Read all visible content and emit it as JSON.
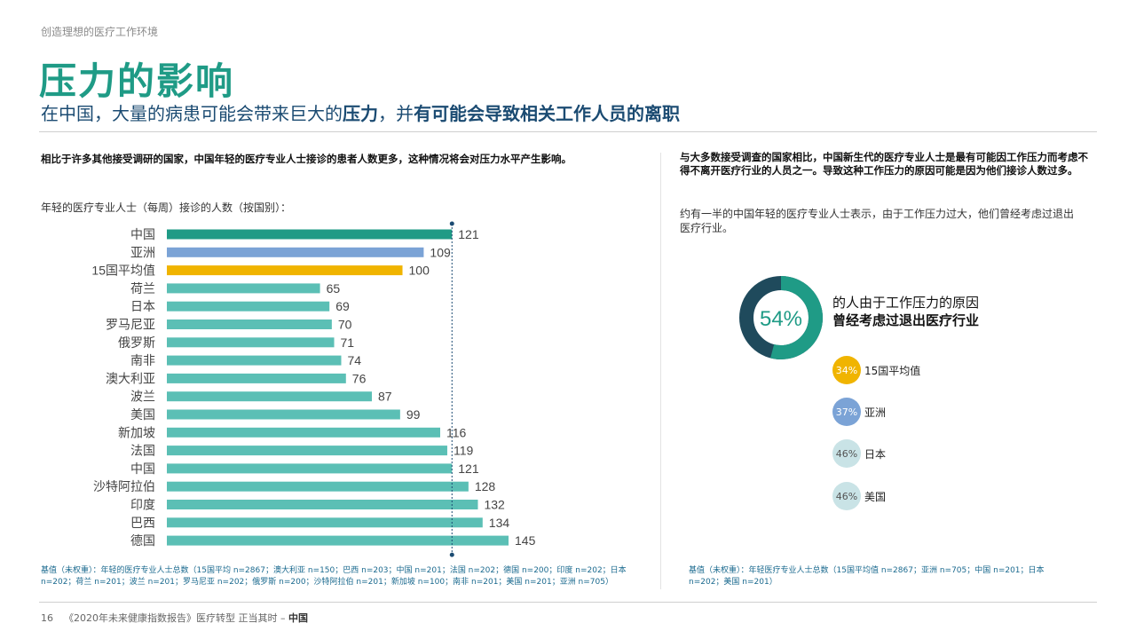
{
  "header": {
    "section_label": "创造理想的医疗工作环境",
    "title": "压力的影响",
    "subtitle_part1": "在中国，大量的病患可能会带来巨大的",
    "subtitle_bold1": "压力",
    "subtitle_part2": "，并",
    "subtitle_bold2": "有可能会导致相关工作人员的离职"
  },
  "left": {
    "intro": "相比于许多其他接受调研的国家，中国年轻的医疗专业人士接诊的患者人数更多，这种情况将会对压力水平产生影响。",
    "chart_caption": "年轻的医疗专业人士（每周）接诊的人数（按国别）：",
    "footnote": "基值（未权重）：年轻的医疗专业人士总数（15国平均 n=2867；澳大利亚 n=150；巴西 n=203；中国 n=201；法国 n=202；德国 n=200；印度 n=202；日本 n=202；荷兰 n=201；波兰 n=201；罗马尼亚 n=202；俄罗斯 n=200；沙特阿拉伯 n=201；新加坡 n=100；南非 n=201；美国 n=201；亚洲 n=705）"
  },
  "right": {
    "intro": "与大多数接受调查的国家相比，中国新生代的医疗专业人士是最有可能因工作压力而考虑不得不离开医疗行业的人员之一。导致这种工作压力的原因可能是因为他们接诊人数过多。",
    "paragraph": "约有一半的中国年轻的医疗专业人士表示，由于工作压力过大，他们曾经考虑过退出医疗行业。",
    "donut": {
      "value": 54,
      "label": "54%",
      "text_plain": "的人由于工作压力的原因",
      "text_bold": "曾经考虑过退出医疗行业",
      "color_fill": "#1f9b86",
      "color_rest": "#1f4a5c"
    },
    "comparisons": [
      {
        "value": "34%",
        "label": "15国平均值",
        "color": "#f0b400",
        "text_color": "#ffffff"
      },
      {
        "value": "37%",
        "label": "亚洲",
        "color": "#7ba3d6",
        "text_color": "#ffffff"
      },
      {
        "value": "46%",
        "label": "日本",
        "color": "#c9e3e6",
        "text_color": "#555555"
      },
      {
        "value": "46%",
        "label": "美国",
        "color": "#c9e3e6",
        "text_color": "#555555"
      }
    ],
    "footnote": "基值（未权重）：年轻医疗专业人士总数（15国平均值 n=2867；亚洲 n=705；中国 n=201；日本 n=202；美国 n=201）"
  },
  "footer": {
    "page_number": "16",
    "report_title": "《2020年未来健康指数报告》医疗转型  正当其时 –",
    "country": "中国"
  },
  "chart_data": {
    "type": "bar",
    "orientation": "horizontal",
    "title": "年轻的医疗专业人士（每周）接诊的人数（按国别）：",
    "categories": [
      "中国",
      "亚洲",
      "15国平均值",
      "荷兰",
      "日本",
      "罗马尼亚",
      "俄罗斯",
      "南非",
      "澳大利亚",
      "波兰",
      "美国",
      "新加坡",
      "法国",
      "中国",
      "沙特阿拉伯",
      "印度",
      "巴西",
      "德国"
    ],
    "values": [
      121,
      109,
      100,
      65,
      69,
      70,
      71,
      74,
      76,
      87,
      99,
      116,
      119,
      121,
      128,
      132,
      134,
      145
    ],
    "colors": [
      "#1f9b86",
      "#7ba3d6",
      "#f0b400",
      "#5bbfb5",
      "#5bbfb5",
      "#5bbfb5",
      "#5bbfb5",
      "#5bbfb5",
      "#5bbfb5",
      "#5bbfb5",
      "#5bbfb5",
      "#5bbfb5",
      "#5bbfb5",
      "#5bbfb5",
      "#5bbfb5",
      "#5bbfb5",
      "#5bbfb5",
      "#5bbfb5"
    ],
    "reference_line": 121,
    "xlim": [
      0,
      145
    ]
  }
}
